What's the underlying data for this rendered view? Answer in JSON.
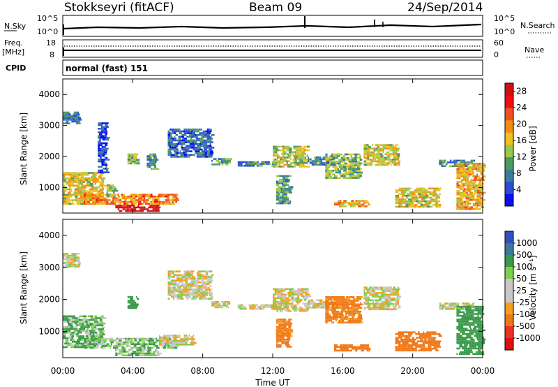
{
  "header": {
    "station": "Stokkseyri (fitACF)",
    "beam": "Beam 09",
    "date": "24/Sep/2014"
  },
  "strip": {
    "nsky_label": "N.Sky",
    "nsky_ticks": [
      "10^5",
      "10^0"
    ],
    "nsearch_label": "N.Search",
    "freq_label": "Freq.",
    "freq_unit": "[MHz]",
    "freq_ticks": [
      "18",
      "8"
    ],
    "nave_ticks": [
      "60",
      "0"
    ],
    "nave_label": "Nave",
    "cpid_label": "CPID",
    "cpid_value": "normal (fast) 151"
  },
  "colors": {
    "power_scale": [
      "#0a10f0",
      "#2a4ed8",
      "#3a7e9a",
      "#4f9a5c",
      "#9ac84a",
      "#f0c020",
      "#f09010",
      "#f05020",
      "#f01010",
      "#d01010"
    ],
    "velocity_scale": [
      "#3050c0",
      "#3a7a9a",
      "#3a9a4a",
      "#7cd04a",
      "#c8c8c8",
      "#c8c8c8",
      "#f0a020",
      "#f07818",
      "#f03020",
      "#e01010"
    ],
    "axis": "#000000"
  },
  "chart_data": [
    {
      "type": "heatmap",
      "title": "",
      "xlabel": "Time UT",
      "ylabel": "Slant Range [km]",
      "xlim": [
        "00:00",
        "24:00"
      ],
      "x_ticks": [
        "00:00",
        "04:00",
        "08:00",
        "12:00",
        "16:00",
        "20:00",
        "00:00"
      ],
      "ylim": [
        180,
        4500
      ],
      "y_ticks": [
        1000,
        2000,
        3000,
        4000
      ],
      "colorbar": {
        "label": "Power [dB]",
        "ticks": [
          4,
          8,
          12,
          16,
          20,
          24,
          28
        ],
        "range": [
          0,
          30
        ]
      },
      "regions": [
        {
          "t": [
            0.0,
            0.9
          ],
          "r": [
            3050,
            3450
          ],
          "level": 8
        },
        {
          "t": [
            0.0,
            2.3
          ],
          "r": [
            500,
            1500
          ],
          "level": 16
        },
        {
          "t": [
            1.2,
            6.5
          ],
          "r": [
            500,
            800
          ],
          "level": 20
        },
        {
          "t": [
            3.0,
            5.5
          ],
          "r": [
            250,
            450
          ],
          "level": 28
        },
        {
          "t": [
            2.5,
            3.0
          ],
          "r": [
            700,
            1100
          ],
          "level": 14
        },
        {
          "t": [
            2.0,
            2.5
          ],
          "r": [
            1500,
            3100
          ],
          "level": 4
        },
        {
          "t": [
            3.7,
            4.3
          ],
          "r": [
            1750,
            2100
          ],
          "level": 12
        },
        {
          "t": [
            4.8,
            5.3
          ],
          "r": [
            1600,
            2100
          ],
          "level": 8
        },
        {
          "t": [
            6.0,
            8.5
          ],
          "r": [
            2000,
            2900
          ],
          "level": 6
        },
        {
          "t": [
            8.5,
            9.5
          ],
          "r": [
            1750,
            1950
          ],
          "level": 10
        },
        {
          "t": [
            10.0,
            12.0
          ],
          "r": [
            1700,
            1850
          ],
          "level": 8
        },
        {
          "t": [
            12.0,
            14.0
          ],
          "r": [
            1650,
            2350
          ],
          "level": 14
        },
        {
          "t": [
            12.2,
            13.0
          ],
          "r": [
            500,
            1400
          ],
          "level": 10
        },
        {
          "t": [
            14.0,
            15.5
          ],
          "r": [
            1750,
            2000
          ],
          "level": 8
        },
        {
          "t": [
            15.0,
            17.0
          ],
          "r": [
            1300,
            2100
          ],
          "level": 12
        },
        {
          "t": [
            15.5,
            17.5
          ],
          "r": [
            400,
            600
          ],
          "level": 18
        },
        {
          "t": [
            17.2,
            19.2
          ],
          "r": [
            1700,
            2400
          ],
          "level": 16
        },
        {
          "t": [
            19.0,
            21.5
          ],
          "r": [
            400,
            1000
          ],
          "level": 16
        },
        {
          "t": [
            21.5,
            23.5
          ],
          "r": [
            1700,
            1900
          ],
          "level": 8
        },
        {
          "t": [
            22.5,
            24.0
          ],
          "r": [
            300,
            1800
          ],
          "level": 18
        }
      ]
    },
    {
      "type": "heatmap",
      "title": "",
      "xlabel": "Time UT",
      "ylabel": "Slant Range [km]",
      "xlim": [
        "00:00",
        "24:00"
      ],
      "x_ticks": [
        "00:00",
        "04:00",
        "08:00",
        "12:00",
        "16:00",
        "20:00",
        "00:00"
      ],
      "ylim": [
        180,
        4500
      ],
      "y_ticks": [
        1000,
        2000,
        3000,
        4000
      ],
      "colorbar": {
        "label": "Velocity [m s⁻¹]",
        "ticks": [
          "1000",
          "500",
          "100",
          "50",
          "25",
          "-25",
          "-100",
          "-500",
          "-1000"
        ]
      },
      "regions": [
        {
          "t": [
            0.0,
            0.9
          ],
          "r": [
            3050,
            3450
          ],
          "v": 0
        },
        {
          "t": [
            0.0,
            2.3
          ],
          "r": [
            500,
            1500
          ],
          "v": 80
        },
        {
          "t": [
            1.2,
            6.5
          ],
          "r": [
            500,
            800
          ],
          "v": 60
        },
        {
          "t": [
            3.0,
            5.5
          ],
          "r": [
            250,
            450
          ],
          "v": 70
        },
        {
          "t": [
            5.5,
            7.5
          ],
          "r": [
            600,
            900
          ],
          "v": 0
        },
        {
          "t": [
            3.7,
            4.3
          ],
          "r": [
            1750,
            2100
          ],
          "v": 200
        },
        {
          "t": [
            6.0,
            8.5
          ],
          "r": [
            2000,
            2900
          ],
          "v": 0
        },
        {
          "t": [
            8.5,
            9.5
          ],
          "r": [
            1750,
            1950
          ],
          "v": 0
        },
        {
          "t": [
            10.0,
            12.0
          ],
          "r": [
            1700,
            1850
          ],
          "v": 0
        },
        {
          "t": [
            12.0,
            14.0
          ],
          "r": [
            1650,
            2350
          ],
          "v": -10
        },
        {
          "t": [
            12.2,
            13.0
          ],
          "r": [
            500,
            1400
          ],
          "v": -150
        },
        {
          "t": [
            14.0,
            15.5
          ],
          "r": [
            1750,
            2000
          ],
          "v": 0
        },
        {
          "t": [
            15.0,
            17.0
          ],
          "r": [
            1300,
            2100
          ],
          "v": -150
        },
        {
          "t": [
            15.5,
            17.5
          ],
          "r": [
            400,
            600
          ],
          "v": -300
        },
        {
          "t": [
            17.2,
            19.2
          ],
          "r": [
            1700,
            2400
          ],
          "v": 0
        },
        {
          "t": [
            19.0,
            21.5
          ],
          "r": [
            400,
            1000
          ],
          "v": -300
        },
        {
          "t": [
            21.5,
            23.5
          ],
          "r": [
            1700,
            1900
          ],
          "v": 0
        },
        {
          "t": [
            22.5,
            24.0
          ],
          "r": [
            300,
            1800
          ],
          "v": 200
        }
      ]
    }
  ]
}
